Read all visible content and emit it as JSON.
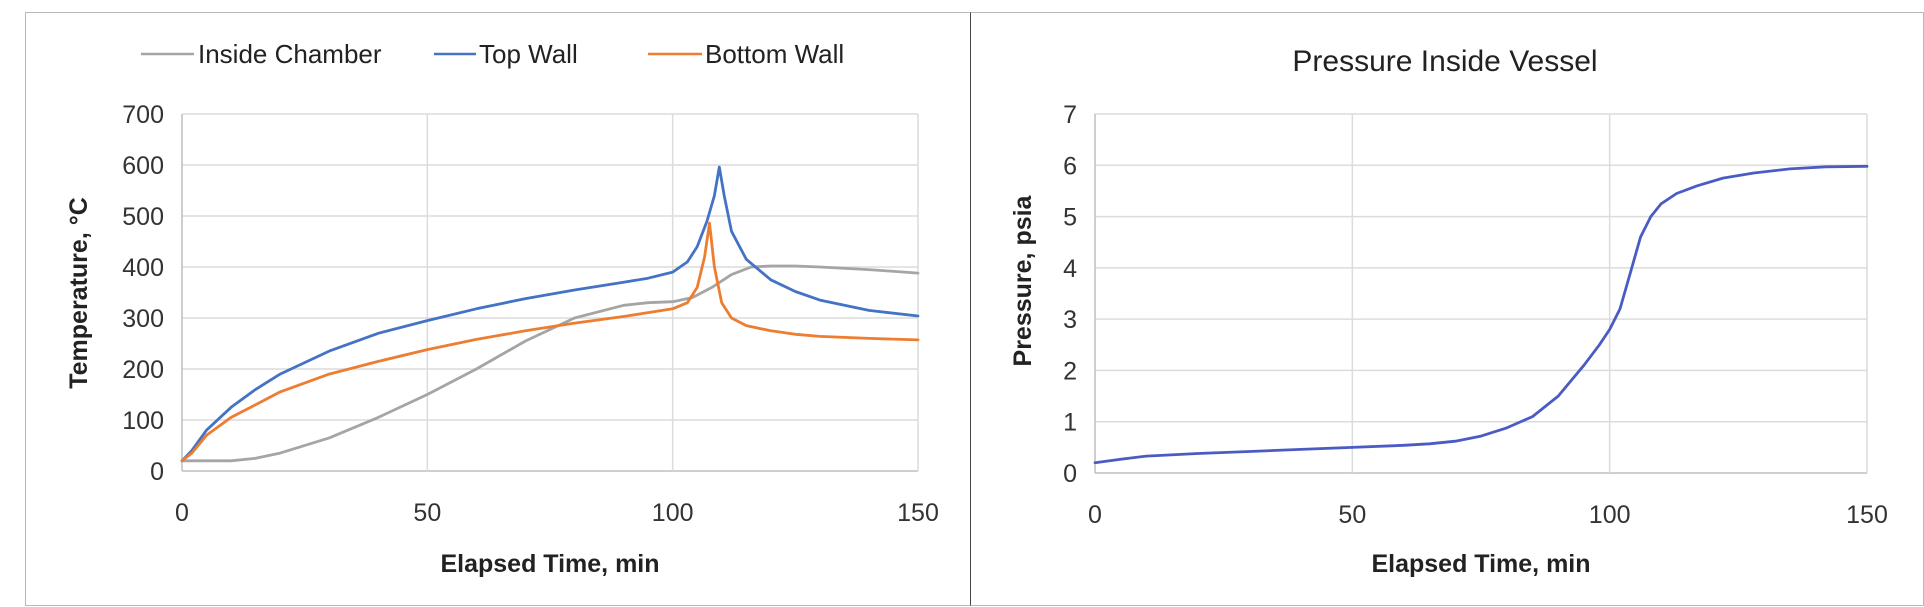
{
  "chart_data": [
    {
      "type": "line",
      "title": "",
      "xlabel": "Elapsed Time, min",
      "ylabel": "Temperature, °C",
      "xlim": [
        0,
        150
      ],
      "ylim": [
        0,
        700
      ],
      "xticks": [
        0,
        50,
        100,
        150
      ],
      "yticks": [
        0,
        100,
        200,
        300,
        400,
        500,
        600,
        700
      ],
      "grid": true,
      "legend_position": "top",
      "series": [
        {
          "name": "Inside Chamber",
          "color": "#a5a5a5",
          "x": [
            0,
            5,
            10,
            15,
            20,
            30,
            40,
            50,
            60,
            70,
            80,
            90,
            95,
            100,
            104,
            108,
            112,
            116,
            120,
            125,
            130,
            140,
            150
          ],
          "y": [
            20,
            20,
            20,
            25,
            35,
            65,
            105,
            150,
            200,
            255,
            300,
            325,
            330,
            332,
            340,
            360,
            385,
            400,
            402,
            402,
            400,
            395,
            388
          ]
        },
        {
          "name": "Top Wall",
          "color": "#4472c4",
          "x": [
            0,
            2,
            5,
            10,
            15,
            20,
            30,
            40,
            50,
            60,
            70,
            80,
            90,
            95,
            100,
            103,
            105,
            107,
            108.5,
            109.5,
            110.5,
            112,
            115,
            120,
            125,
            130,
            140,
            150
          ],
          "y": [
            20,
            40,
            80,
            125,
            160,
            190,
            235,
            270,
            295,
            318,
            338,
            355,
            370,
            378,
            390,
            410,
            440,
            490,
            540,
            596,
            540,
            470,
            415,
            375,
            352,
            335,
            315,
            304
          ],
          "peak": {
            "x": 109.5,
            "y": 596
          }
        },
        {
          "name": "Bottom Wall",
          "color": "#ed7d31",
          "x": [
            0,
            2,
            5,
            10,
            15,
            20,
            30,
            40,
            50,
            60,
            70,
            80,
            90,
            100,
            103,
            105,
            106.5,
            107.5,
            108.5,
            110,
            112,
            115,
            120,
            125,
            130,
            140,
            150
          ],
          "y": [
            20,
            35,
            70,
            105,
            130,
            155,
            190,
            215,
            238,
            258,
            275,
            290,
            303,
            318,
            330,
            360,
            420,
            486,
            400,
            330,
            300,
            285,
            275,
            268,
            264,
            260,
            257
          ],
          "peak": {
            "x": 107.5,
            "y": 486
          }
        }
      ]
    },
    {
      "type": "line",
      "title": "Pressure Inside Vessel",
      "xlabel": "Elapsed Time, min",
      "ylabel": "Pressure, psia",
      "xlim": [
        0,
        150
      ],
      "ylim": [
        0,
        7
      ],
      "xticks": [
        0,
        50,
        100,
        150
      ],
      "yticks": [
        0,
        1,
        2,
        3,
        4,
        5,
        6,
        7
      ],
      "grid": true,
      "legend_position": "none",
      "series": [
        {
          "name": "Pressure",
          "color": "#4a5cc4",
          "x": [
            0,
            5,
            10,
            20,
            30,
            40,
            50,
            60,
            65,
            70,
            75,
            80,
            85,
            90,
            95,
            98,
            100,
            102,
            104,
            106,
            108,
            110,
            113,
            117,
            122,
            128,
            135,
            142,
            150
          ],
          "y": [
            0.2,
            0.27,
            0.33,
            0.38,
            0.42,
            0.46,
            0.5,
            0.54,
            0.57,
            0.62,
            0.72,
            0.88,
            1.1,
            1.5,
            2.1,
            2.5,
            2.8,
            3.2,
            3.9,
            4.6,
            5.0,
            5.25,
            5.45,
            5.6,
            5.75,
            5.85,
            5.93,
            5.97,
            5.98
          ]
        }
      ]
    }
  ],
  "left_chart": {
    "legend": [
      {
        "label": "Inside Chamber",
        "color": "#a5a5a5"
      },
      {
        "label": "Top Wall",
        "color": "#4472c4"
      },
      {
        "label": "Bottom Wall",
        "color": "#ed7d31"
      }
    ],
    "ylabel": "Temperature, °C",
    "xlabel": "Elapsed Time, min"
  },
  "right_chart": {
    "title": "Pressure Inside Vessel",
    "ylabel": "Pressure, psia",
    "xlabel": "Elapsed Time, min"
  }
}
